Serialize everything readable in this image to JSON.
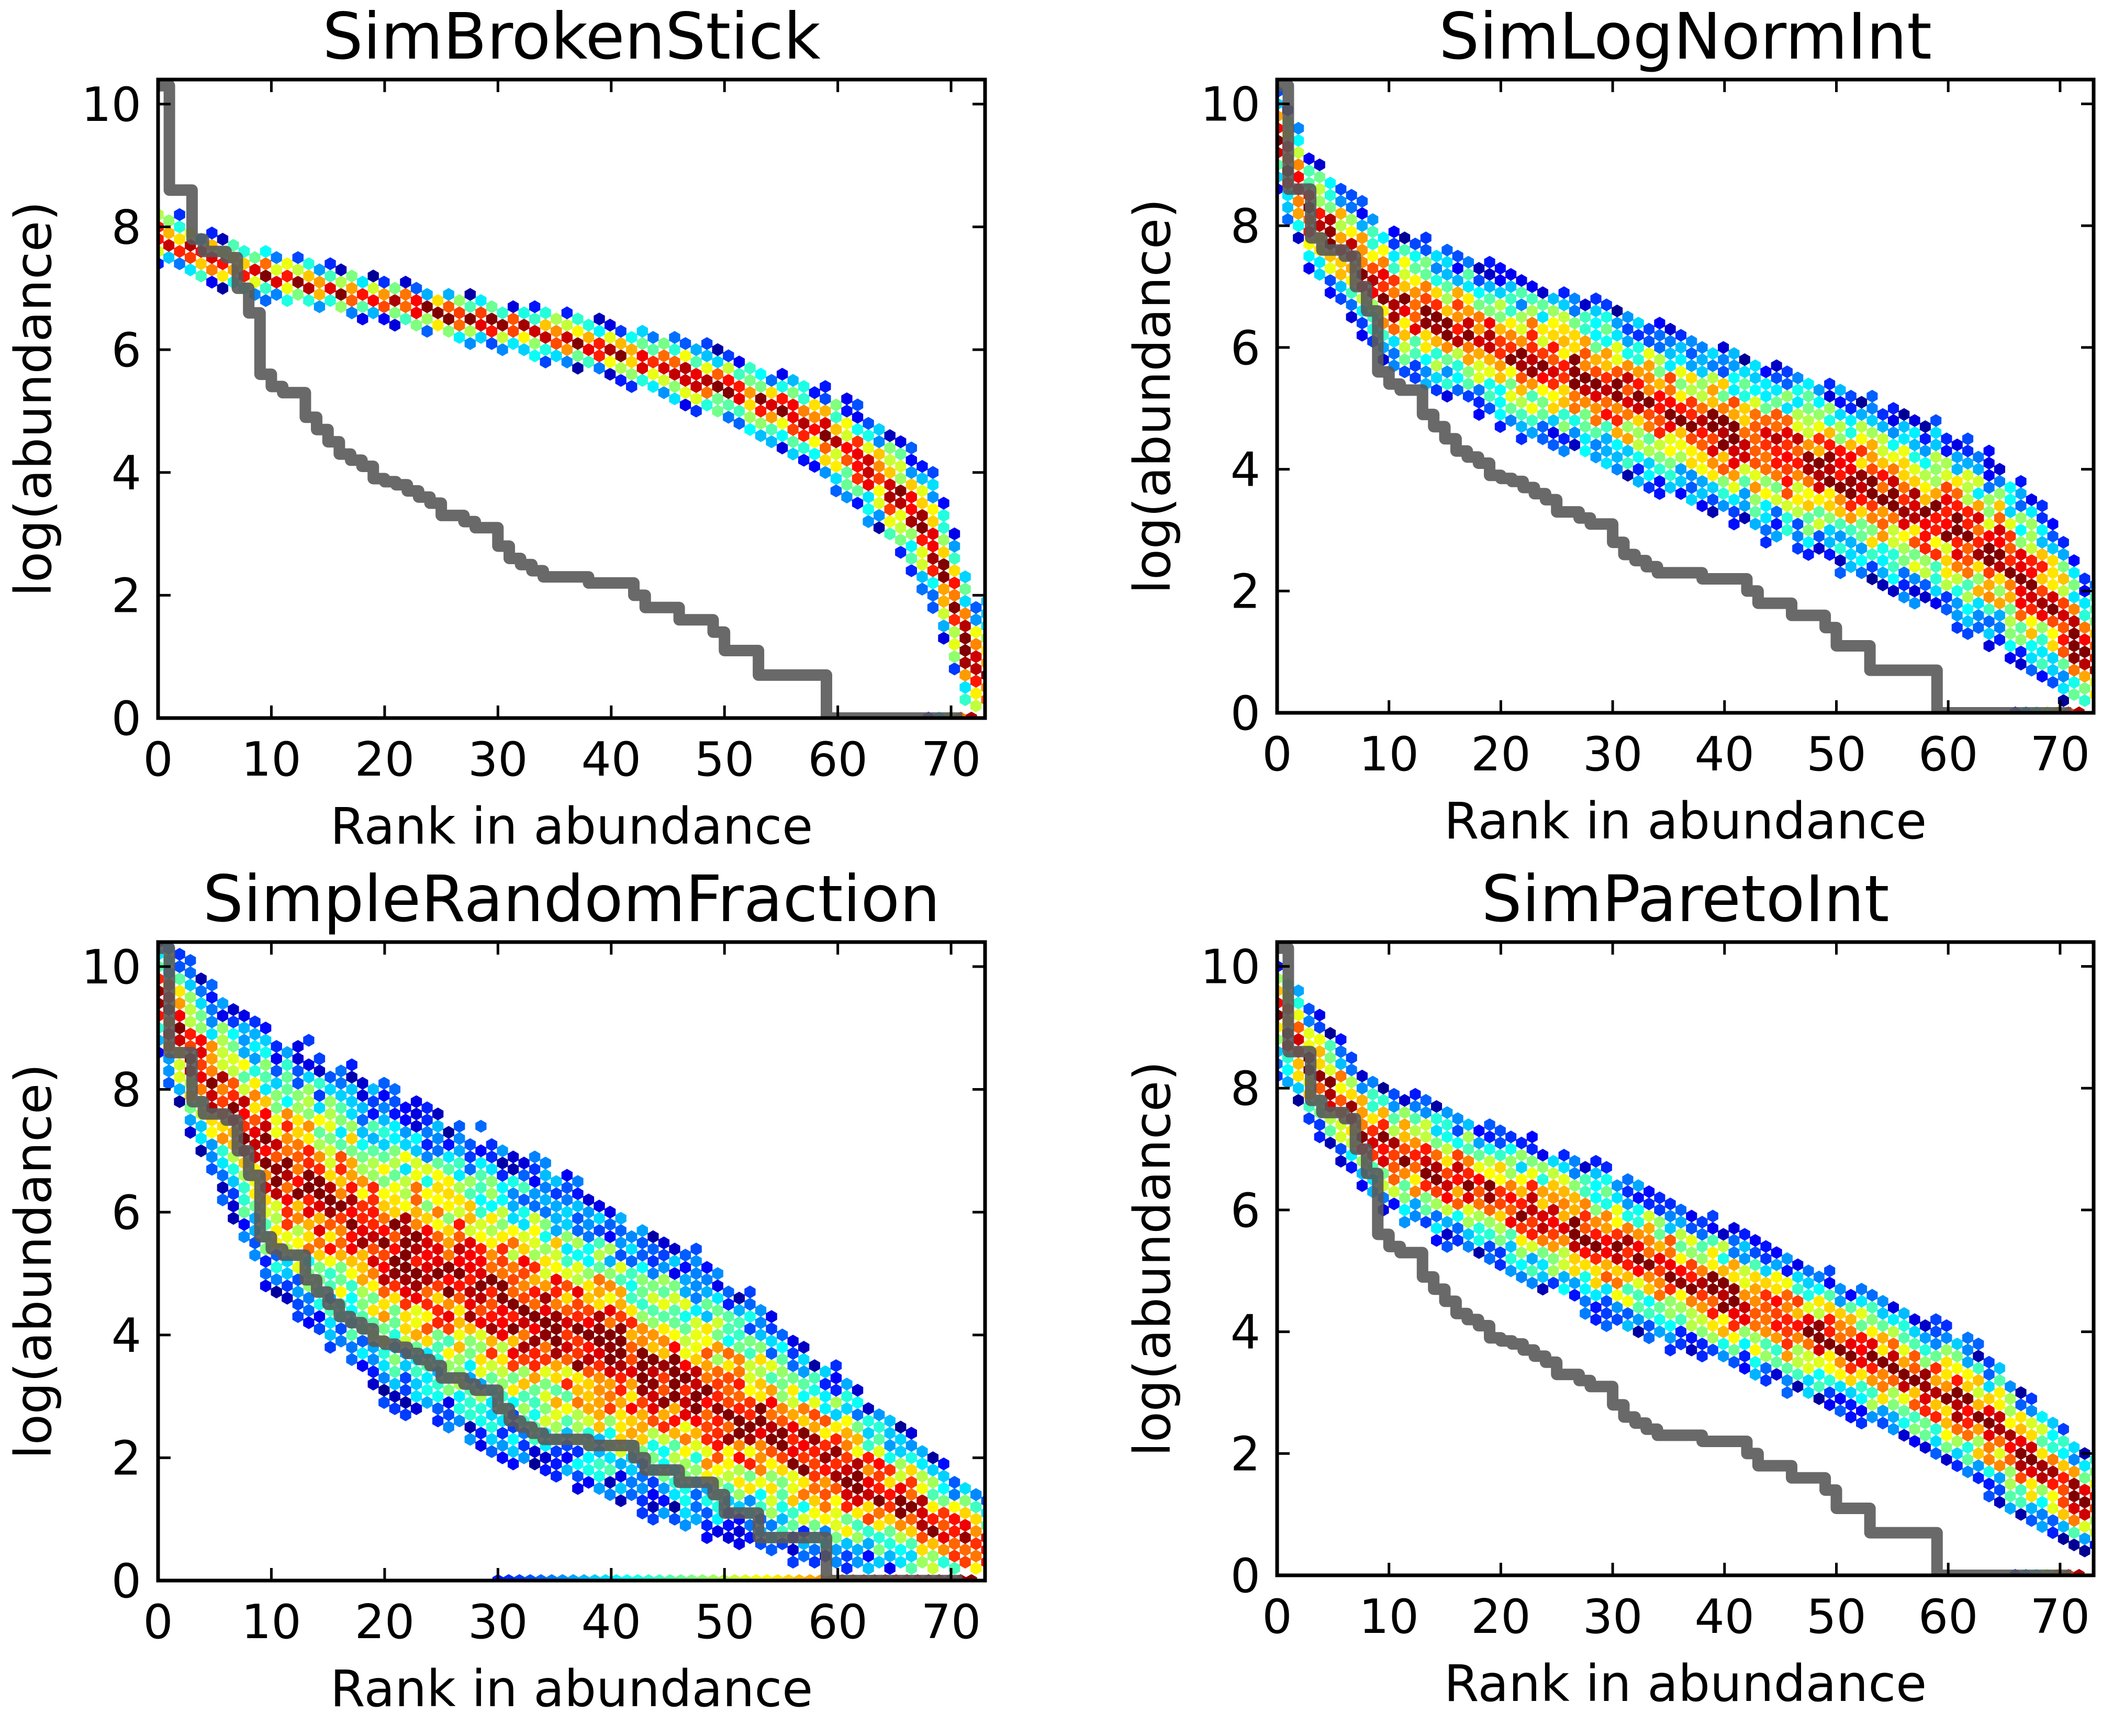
{
  "chart_data": [
    {
      "type": "heatmap",
      "title": "SimBrokenStick",
      "xlabel": "Rank in abundance",
      "ylabel": "log(abundance)",
      "xlim": [
        0,
        73
      ],
      "ylim": [
        0,
        10.4
      ],
      "xticks": [
        "0",
        "10",
        "20",
        "30",
        "40",
        "50",
        "60",
        "70"
      ],
      "yticks": [
        "0",
        "2",
        "4",
        "6",
        "8",
        "10"
      ],
      "grid": false,
      "hexbin": {
        "description_values": "simulated rank-abundance density (hexbin), colormap jet",
        "band_center": [
          [
            0,
            7.9
          ],
          [
            4,
            7.5
          ],
          [
            10,
            7.2
          ],
          [
            20,
            6.8
          ],
          [
            30,
            6.4
          ],
          [
            40,
            6.0
          ],
          [
            50,
            5.4
          ],
          [
            55,
            5.0
          ],
          [
            60,
            4.5
          ],
          [
            65,
            3.7
          ],
          [
            68,
            3.0
          ],
          [
            70,
            2.0
          ],
          [
            72,
            0.7
          ]
        ],
        "band_halfwidth": [
          [
            0,
            0.45
          ],
          [
            20,
            0.35
          ],
          [
            40,
            0.45
          ],
          [
            55,
            0.6
          ],
          [
            65,
            0.9
          ],
          [
            72,
            1.2
          ]
        ],
        "zero_row": [
          68,
          72
        ]
      },
      "series": [
        {
          "name": "",
          "color": "#595959",
          "x": [
            0,
            1,
            2,
            3,
            4,
            5,
            6,
            7,
            8,
            9,
            10,
            11,
            12,
            13,
            14,
            15,
            16,
            17,
            18,
            19,
            20,
            21,
            22,
            23,
            24,
            25,
            26,
            27,
            28,
            29,
            30,
            31,
            32,
            33,
            34,
            35,
            36,
            37,
            38,
            39,
            40,
            41,
            42,
            43,
            44,
            45,
            46,
            47,
            48,
            49,
            50,
            51,
            52,
            53,
            54,
            55,
            56,
            57,
            58,
            59,
            60,
            61,
            62,
            63,
            64,
            65,
            66,
            67,
            68,
            69,
            70,
            71
          ],
          "y": [
            10.3,
            8.6,
            8.6,
            7.8,
            7.6,
            7.6,
            7.5,
            7.0,
            6.6,
            5.6,
            5.4,
            5.3,
            5.3,
            4.9,
            4.7,
            4.5,
            4.3,
            4.2,
            4.1,
            3.9,
            3.85,
            3.8,
            3.7,
            3.6,
            3.5,
            3.3,
            3.3,
            3.2,
            3.1,
            3.1,
            2.8,
            2.6,
            2.5,
            2.4,
            2.3,
            2.3,
            2.3,
            2.3,
            2.2,
            2.2,
            2.2,
            2.2,
            2.0,
            1.8,
            1.8,
            1.8,
            1.6,
            1.6,
            1.6,
            1.4,
            1.1,
            1.1,
            1.1,
            0.7,
            0.7,
            0.7,
            0.7,
            0.7,
            0.7,
            0,
            0,
            0,
            0,
            0,
            0,
            0,
            0,
            0,
            0,
            0,
            0,
            0
          ]
        }
      ]
    },
    {
      "type": "heatmap",
      "title": "SimLogNormInt",
      "xlabel": "Rank in abundance",
      "ylabel": "log(abundance)",
      "xlim": [
        0,
        73
      ],
      "ylim": [
        0,
        10.4
      ],
      "xticks": [
        "0",
        "10",
        "20",
        "30",
        "40",
        "50",
        "60",
        "70"
      ],
      "yticks": [
        "0",
        "2",
        "4",
        "6",
        "8",
        "10"
      ],
      "grid": false,
      "hexbin": {
        "description_values": "simulated rank-abundance density (hexbin), colormap jet",
        "band_center": [
          [
            0,
            9.4
          ],
          [
            3,
            8.2
          ],
          [
            10,
            6.8
          ],
          [
            20,
            6.0
          ],
          [
            30,
            5.3
          ],
          [
            40,
            4.6
          ],
          [
            50,
            3.9
          ],
          [
            60,
            3.1
          ],
          [
            65,
            2.5
          ],
          [
            70,
            1.6
          ],
          [
            72,
            0.9
          ]
        ],
        "band_halfwidth": [
          [
            0,
            0.9
          ],
          [
            10,
            1.1
          ],
          [
            30,
            1.3
          ],
          [
            50,
            1.4
          ],
          [
            65,
            1.5
          ],
          [
            72,
            1.2
          ]
        ],
        "zero_row": [
          66,
          72
        ]
      },
      "series": [
        {
          "name": "",
          "color": "#595959",
          "x": [
            0,
            1,
            2,
            3,
            4,
            5,
            6,
            7,
            8,
            9,
            10,
            11,
            12,
            13,
            14,
            15,
            16,
            17,
            18,
            19,
            20,
            21,
            22,
            23,
            24,
            25,
            26,
            27,
            28,
            29,
            30,
            31,
            32,
            33,
            34,
            35,
            36,
            37,
            38,
            39,
            40,
            41,
            42,
            43,
            44,
            45,
            46,
            47,
            48,
            49,
            50,
            51,
            52,
            53,
            54,
            55,
            56,
            57,
            58,
            59,
            60,
            61,
            62,
            63,
            64,
            65,
            66,
            67,
            68,
            69,
            70,
            71
          ],
          "y": [
            10.3,
            8.6,
            8.6,
            7.8,
            7.6,
            7.6,
            7.5,
            7.0,
            6.6,
            5.6,
            5.4,
            5.3,
            5.3,
            4.9,
            4.7,
            4.5,
            4.3,
            4.2,
            4.1,
            3.9,
            3.85,
            3.8,
            3.7,
            3.6,
            3.5,
            3.3,
            3.3,
            3.2,
            3.1,
            3.1,
            2.8,
            2.6,
            2.5,
            2.4,
            2.3,
            2.3,
            2.3,
            2.3,
            2.2,
            2.2,
            2.2,
            2.2,
            2.0,
            1.8,
            1.8,
            1.8,
            1.6,
            1.6,
            1.6,
            1.4,
            1.1,
            1.1,
            1.1,
            0.7,
            0.7,
            0.7,
            0.7,
            0.7,
            0.7,
            0,
            0,
            0,
            0,
            0,
            0,
            0,
            0,
            0,
            0,
            0,
            0,
            0
          ]
        }
      ]
    },
    {
      "type": "heatmap",
      "title": "SimpleRandomFraction",
      "xlabel": "Rank in abundance",
      "ylabel": "log(abundance)",
      "xlim": [
        0,
        73
      ],
      "ylim": [
        0,
        10.4
      ],
      "xticks": [
        "0",
        "10",
        "20",
        "30",
        "40",
        "50",
        "60",
        "70"
      ],
      "yticks": [
        "0",
        "2",
        "4",
        "6",
        "8",
        "10"
      ],
      "grid": false,
      "hexbin": {
        "description_values": "simulated rank-abundance density (hexbin), colormap jet",
        "band_center": [
          [
            0,
            9.5
          ],
          [
            5,
            8.0
          ],
          [
            10,
            6.8
          ],
          [
            20,
            5.5
          ],
          [
            30,
            4.6
          ],
          [
            40,
            3.7
          ],
          [
            50,
            2.8
          ],
          [
            60,
            1.8
          ],
          [
            66,
            1.2
          ],
          [
            72,
            0.5
          ]
        ],
        "band_halfwidth": [
          [
            0,
            1.0
          ],
          [
            10,
            2.0
          ],
          [
            20,
            2.4
          ],
          [
            35,
            2.4
          ],
          [
            50,
            2.0
          ],
          [
            60,
            1.5
          ],
          [
            72,
            0.9
          ]
        ],
        "zero_row": [
          30,
          72
        ]
      },
      "series": [
        {
          "name": "",
          "color": "#595959",
          "x": [
            0,
            1,
            2,
            3,
            4,
            5,
            6,
            7,
            8,
            9,
            10,
            11,
            12,
            13,
            14,
            15,
            16,
            17,
            18,
            19,
            20,
            21,
            22,
            23,
            24,
            25,
            26,
            27,
            28,
            29,
            30,
            31,
            32,
            33,
            34,
            35,
            36,
            37,
            38,
            39,
            40,
            41,
            42,
            43,
            44,
            45,
            46,
            47,
            48,
            49,
            50,
            51,
            52,
            53,
            54,
            55,
            56,
            57,
            58,
            59,
            60,
            61,
            62,
            63,
            64,
            65,
            66,
            67,
            68,
            69,
            70,
            71
          ],
          "y": [
            10.3,
            8.6,
            8.6,
            7.8,
            7.6,
            7.6,
            7.5,
            7.0,
            6.6,
            5.6,
            5.4,
            5.3,
            5.3,
            4.9,
            4.7,
            4.5,
            4.3,
            4.2,
            4.1,
            3.9,
            3.85,
            3.8,
            3.7,
            3.6,
            3.5,
            3.3,
            3.3,
            3.2,
            3.1,
            3.1,
            2.8,
            2.6,
            2.5,
            2.4,
            2.3,
            2.3,
            2.3,
            2.3,
            2.2,
            2.2,
            2.2,
            2.2,
            2.0,
            1.8,
            1.8,
            1.8,
            1.6,
            1.6,
            1.6,
            1.4,
            1.1,
            1.1,
            1.1,
            0.7,
            0.7,
            0.7,
            0.7,
            0.7,
            0.7,
            0,
            0,
            0,
            0,
            0,
            0,
            0,
            0,
            0,
            0,
            0,
            0,
            0
          ]
        }
      ]
    },
    {
      "type": "heatmap",
      "title": "SimParetoInt",
      "xlabel": "Rank in abundance",
      "ylabel": "log(abundance)",
      "xlim": [
        0,
        73
      ],
      "ylim": [
        0,
        10.4
      ],
      "xticks": [
        "0",
        "10",
        "20",
        "30",
        "40",
        "50",
        "60",
        "70"
      ],
      "yticks": [
        "0",
        "2",
        "4",
        "6",
        "8",
        "10"
      ],
      "grid": false,
      "hexbin": {
        "description_values": "simulated rank-abundance density (hexbin), colormap jet",
        "band_center": [
          [
            0,
            9.2
          ],
          [
            3,
            8.4
          ],
          [
            8,
            7.2
          ],
          [
            12,
            6.8
          ],
          [
            20,
            6.2
          ],
          [
            27,
            5.6
          ],
          [
            35,
            5.0
          ],
          [
            45,
            4.2
          ],
          [
            55,
            3.4
          ],
          [
            62,
            2.7
          ],
          [
            68,
            1.8
          ],
          [
            72,
            1.2
          ]
        ],
        "band_halfwidth": [
          [
            0,
            0.9
          ],
          [
            10,
            1.0
          ],
          [
            30,
            1.2
          ],
          [
            50,
            1.0
          ],
          [
            65,
            1.1
          ],
          [
            72,
            0.8
          ]
        ],
        "zero_row": [
          66,
          72
        ]
      },
      "series": [
        {
          "name": "",
          "color": "#595959",
          "x": [
            0,
            1,
            2,
            3,
            4,
            5,
            6,
            7,
            8,
            9,
            10,
            11,
            12,
            13,
            14,
            15,
            16,
            17,
            18,
            19,
            20,
            21,
            22,
            23,
            24,
            25,
            26,
            27,
            28,
            29,
            30,
            31,
            32,
            33,
            34,
            35,
            36,
            37,
            38,
            39,
            40,
            41,
            42,
            43,
            44,
            45,
            46,
            47,
            48,
            49,
            50,
            51,
            52,
            53,
            54,
            55,
            56,
            57,
            58,
            59,
            60,
            61,
            62,
            63,
            64,
            65,
            66,
            67,
            68,
            69,
            70,
            71
          ],
          "y": [
            10.3,
            8.6,
            8.6,
            7.8,
            7.6,
            7.6,
            7.5,
            7.0,
            6.6,
            5.6,
            5.4,
            5.3,
            5.3,
            4.9,
            4.7,
            4.5,
            4.3,
            4.2,
            4.1,
            3.9,
            3.85,
            3.8,
            3.7,
            3.6,
            3.5,
            3.3,
            3.3,
            3.2,
            3.1,
            3.1,
            2.8,
            2.6,
            2.5,
            2.4,
            2.3,
            2.3,
            2.3,
            2.3,
            2.2,
            2.2,
            2.2,
            2.2,
            2.0,
            1.8,
            1.8,
            1.8,
            1.6,
            1.6,
            1.6,
            1.4,
            1.1,
            1.1,
            1.1,
            0.7,
            0.7,
            0.7,
            0.7,
            0.7,
            0.7,
            0,
            0,
            0,
            0,
            0,
            0,
            0,
            0,
            0,
            0,
            0,
            0,
            0
          ]
        }
      ]
    }
  ]
}
